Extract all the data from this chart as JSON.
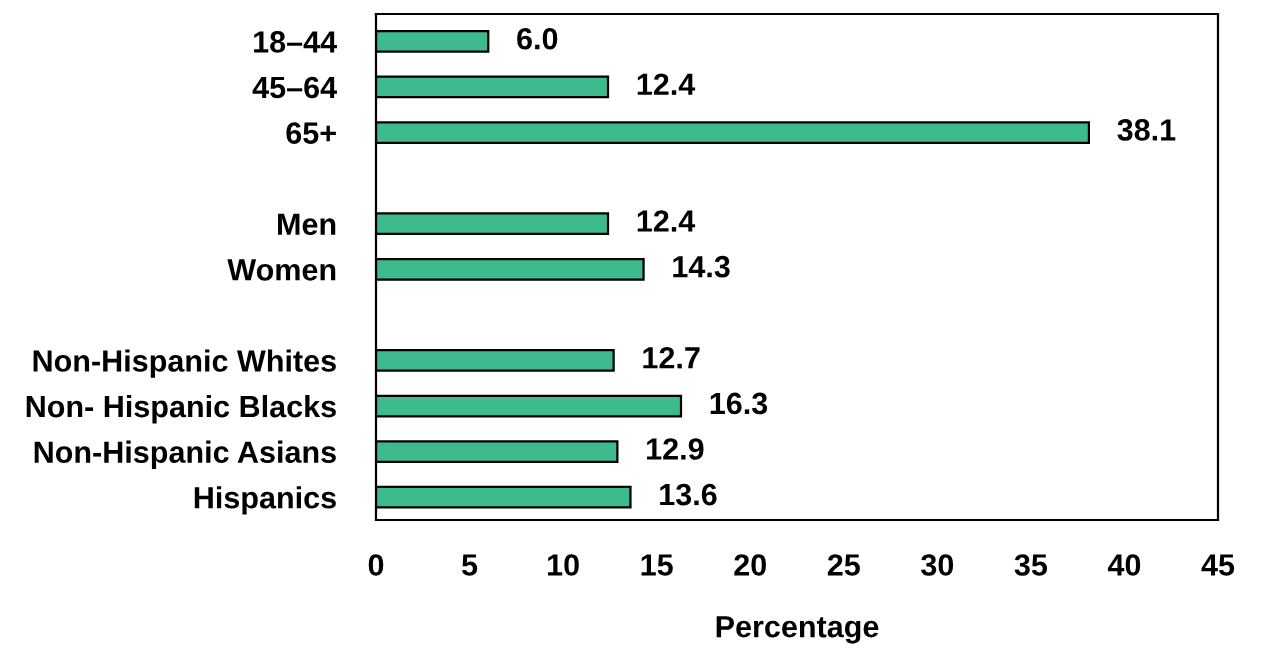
{
  "chart_data": {
    "type": "bar",
    "orientation": "horizontal",
    "xlabel": "Percentage",
    "categories": [
      "18–44",
      "45–64",
      "65+",
      null,
      "Men",
      "Women",
      null,
      "Non-Hispanic Whites",
      "Non- Hispanic Blacks",
      "Non-Hispanic Asians",
      "Hispanics"
    ],
    "values": [
      6.0,
      12.4,
      38.1,
      null,
      12.4,
      14.3,
      null,
      12.7,
      16.3,
      12.9,
      13.6
    ],
    "value_labels": [
      "6.0",
      "12.4",
      "38.1",
      null,
      "12.4",
      "14.3",
      null,
      "12.7",
      "16.3",
      "12.9",
      "13.6"
    ],
    "color": "#3dbb8f",
    "xlim": [
      0,
      45
    ],
    "xticks": [
      0,
      5,
      10,
      15,
      20,
      25,
      30,
      35,
      40,
      45
    ],
    "grid": false
  }
}
